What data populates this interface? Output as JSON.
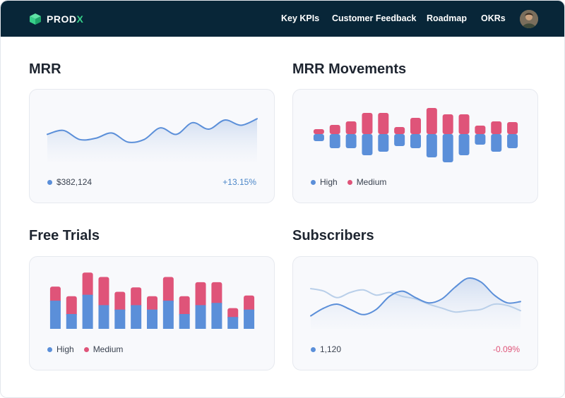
{
  "brand": {
    "prefix": "PROD",
    "accent_suffix": "X"
  },
  "nav": {
    "links": [
      "Key KPIs",
      "Customer Feedback",
      "Roadmap",
      "OKRs"
    ]
  },
  "colors": {
    "navbar": "#082638",
    "brand_green": "#37d08a",
    "high": "#5b8fd9",
    "medium": "#df5479",
    "line": "#5b8fd9",
    "line_light": "#b9cfe9",
    "positive": "#4a86c8",
    "negative": "#df5479"
  },
  "cards": {
    "mrr": {
      "title": "MRR",
      "value": "$382,124",
      "change": "+13.15%"
    },
    "movements": {
      "title": "MRR Movements",
      "legend": [
        "High",
        "Medium"
      ]
    },
    "trials": {
      "title": "Free Trials",
      "legend": [
        "High",
        "Medium"
      ]
    },
    "subscribers": {
      "title": "Subscribers",
      "value": "1,120",
      "change": "-0.09%"
    }
  },
  "chart_data": [
    {
      "type": "area",
      "name": "mrr",
      "title": "MRR",
      "x": [
        1,
        2,
        3,
        4,
        5,
        6,
        7,
        8,
        9,
        10,
        11,
        12,
        13,
        14
      ],
      "y": [
        42,
        48,
        34,
        36,
        44,
        30,
        34,
        52,
        42,
        60,
        50,
        64,
        56,
        66
      ],
      "ylim": [
        0,
        100
      ]
    },
    {
      "type": "bar",
      "name": "mrr_movements",
      "title": "MRR Movements",
      "diverging": true,
      "categories": [
        "1",
        "2",
        "3",
        "4",
        "5",
        "6",
        "7",
        "8",
        "9",
        "10",
        "11",
        "12",
        "13"
      ],
      "series": [
        {
          "name": "High",
          "values": [
            -10,
            -20,
            -20,
            -30,
            -25,
            -17,
            -20,
            -33,
            -40,
            -30,
            -15,
            -25,
            -20
          ]
        },
        {
          "name": "Medium",
          "values": [
            7,
            13,
            18,
            30,
            30,
            10,
            23,
            37,
            28,
            28,
            12,
            18,
            17
          ]
        }
      ],
      "ylim": [
        -40,
        40
      ]
    },
    {
      "type": "bar",
      "name": "free_trials",
      "title": "Free Trials",
      "stacked": true,
      "categories": [
        "1",
        "2",
        "3",
        "4",
        "5",
        "6",
        "7",
        "8",
        "9",
        "10",
        "11",
        "12",
        "13"
      ],
      "series": [
        {
          "name": "High",
          "values": [
            38,
            20,
            46,
            32,
            26,
            32,
            26,
            38,
            20,
            32,
            35,
            16,
            26
          ]
        },
        {
          "name": "Medium",
          "values": [
            19,
            24,
            30,
            38,
            24,
            24,
            18,
            32,
            24,
            31,
            28,
            12,
            19
          ]
        }
      ],
      "ylim": [
        0,
        80
      ]
    },
    {
      "type": "area",
      "name": "subscribers",
      "title": "Subscribers",
      "x": [
        1,
        2,
        3,
        4,
        5,
        6,
        7,
        8,
        9,
        10,
        11,
        12,
        13,
        14,
        15,
        16,
        17
      ],
      "series": [
        {
          "values": [
            20,
            32,
            38,
            30,
            22,
            30,
            50,
            58,
            48,
            40,
            46,
            64,
            78,
            72,
            52,
            40,
            42
          ]
        },
        {
          "values": [
            62,
            58,
            48,
            56,
            60,
            52,
            56,
            50,
            46,
            38,
            32,
            26,
            28,
            30,
            38,
            36,
            28
          ]
        }
      ],
      "ylim": [
        0,
        100
      ]
    }
  ]
}
